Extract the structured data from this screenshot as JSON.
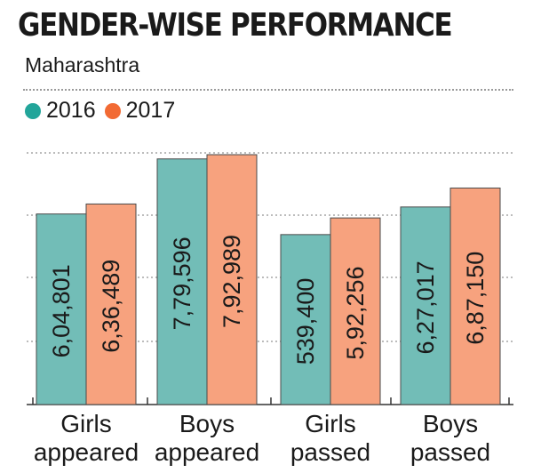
{
  "header": {
    "title": "GENDER-WISE PERFORMANCE",
    "subtitle": "Maharashtra"
  },
  "colors": {
    "2016": "#72bdb7",
    "2017": "#f7a27e",
    "2016_dot": "#22a59a",
    "2017_dot": "#f26a33"
  },
  "chart_data": {
    "type": "bar",
    "title": "GENDER-WISE PERFORMANCE",
    "subtitle": "Maharashtra",
    "categories": [
      [
        "Girls",
        "appeared"
      ],
      [
        "Boys",
        "appeared"
      ],
      [
        "Girls",
        "passed"
      ],
      [
        "Boys",
        "passed"
      ]
    ],
    "series": [
      {
        "name": "2016",
        "values": [
          604801,
          779596,
          539400,
          627017
        ],
        "labels": [
          "6,04,801",
          "7,79,596",
          "539,400",
          "6,27,017"
        ]
      },
      {
        "name": "2017",
        "values": [
          636489,
          792989,
          592256,
          687150
        ],
        "labels": [
          "6,36,489",
          "7,92,989",
          "5,92,256",
          "6,87,150"
        ]
      }
    ],
    "ylim": [
      0,
      800000
    ],
    "grid": true,
    "legend": "top-left"
  }
}
